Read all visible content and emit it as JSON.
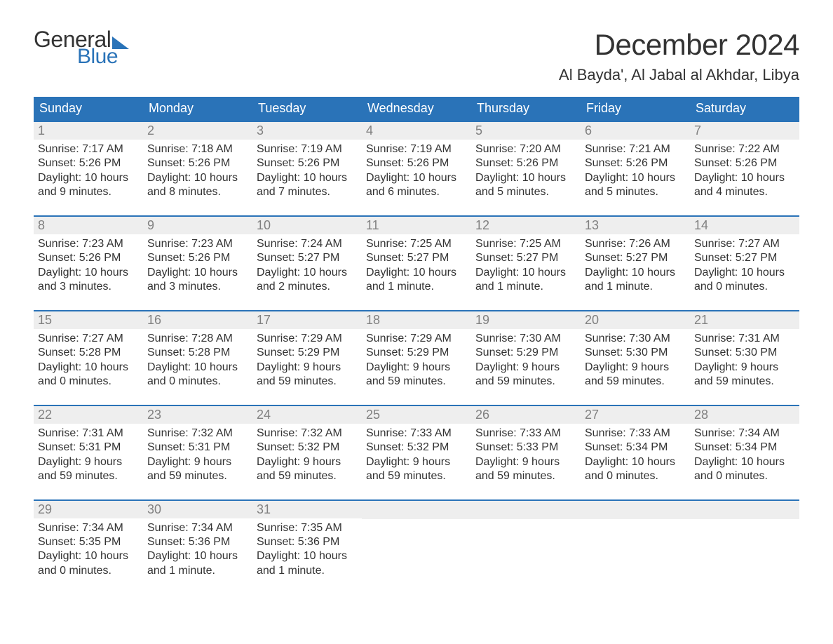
{
  "logo": {
    "text1": "General",
    "text2": "Blue"
  },
  "colors": {
    "brand": "#2a73b8",
    "header_bg": "#2a73b8",
    "header_fg": "#ffffff",
    "daynum_bg": "#eeeeee",
    "daynum_fg": "#808080",
    "body_fg": "#333333",
    "page_bg": "#ffffff"
  },
  "title": "December 2024",
  "location": "Al Bayda', Al Jabal al Akhdar, Libya",
  "day_names": [
    "Sunday",
    "Monday",
    "Tuesday",
    "Wednesday",
    "Thursday",
    "Friday",
    "Saturday"
  ],
  "weeks": [
    [
      {
        "n": "1",
        "sr": "Sunrise: 7:17 AM",
        "ss": "Sunset: 5:26 PM",
        "d1": "Daylight: 10 hours",
        "d2": "and 9 minutes."
      },
      {
        "n": "2",
        "sr": "Sunrise: 7:18 AM",
        "ss": "Sunset: 5:26 PM",
        "d1": "Daylight: 10 hours",
        "d2": "and 8 minutes."
      },
      {
        "n": "3",
        "sr": "Sunrise: 7:19 AM",
        "ss": "Sunset: 5:26 PM",
        "d1": "Daylight: 10 hours",
        "d2": "and 7 minutes."
      },
      {
        "n": "4",
        "sr": "Sunrise: 7:19 AM",
        "ss": "Sunset: 5:26 PM",
        "d1": "Daylight: 10 hours",
        "d2": "and 6 minutes."
      },
      {
        "n": "5",
        "sr": "Sunrise: 7:20 AM",
        "ss": "Sunset: 5:26 PM",
        "d1": "Daylight: 10 hours",
        "d2": "and 5 minutes."
      },
      {
        "n": "6",
        "sr": "Sunrise: 7:21 AM",
        "ss": "Sunset: 5:26 PM",
        "d1": "Daylight: 10 hours",
        "d2": "and 5 minutes."
      },
      {
        "n": "7",
        "sr": "Sunrise: 7:22 AM",
        "ss": "Sunset: 5:26 PM",
        "d1": "Daylight: 10 hours",
        "d2": "and 4 minutes."
      }
    ],
    [
      {
        "n": "8",
        "sr": "Sunrise: 7:23 AM",
        "ss": "Sunset: 5:26 PM",
        "d1": "Daylight: 10 hours",
        "d2": "and 3 minutes."
      },
      {
        "n": "9",
        "sr": "Sunrise: 7:23 AM",
        "ss": "Sunset: 5:26 PM",
        "d1": "Daylight: 10 hours",
        "d2": "and 3 minutes."
      },
      {
        "n": "10",
        "sr": "Sunrise: 7:24 AM",
        "ss": "Sunset: 5:27 PM",
        "d1": "Daylight: 10 hours",
        "d2": "and 2 minutes."
      },
      {
        "n": "11",
        "sr": "Sunrise: 7:25 AM",
        "ss": "Sunset: 5:27 PM",
        "d1": "Daylight: 10 hours",
        "d2": "and 1 minute."
      },
      {
        "n": "12",
        "sr": "Sunrise: 7:25 AM",
        "ss": "Sunset: 5:27 PM",
        "d1": "Daylight: 10 hours",
        "d2": "and 1 minute."
      },
      {
        "n": "13",
        "sr": "Sunrise: 7:26 AM",
        "ss": "Sunset: 5:27 PM",
        "d1": "Daylight: 10 hours",
        "d2": "and 1 minute."
      },
      {
        "n": "14",
        "sr": "Sunrise: 7:27 AM",
        "ss": "Sunset: 5:27 PM",
        "d1": "Daylight: 10 hours",
        "d2": "and 0 minutes."
      }
    ],
    [
      {
        "n": "15",
        "sr": "Sunrise: 7:27 AM",
        "ss": "Sunset: 5:28 PM",
        "d1": "Daylight: 10 hours",
        "d2": "and 0 minutes."
      },
      {
        "n": "16",
        "sr": "Sunrise: 7:28 AM",
        "ss": "Sunset: 5:28 PM",
        "d1": "Daylight: 10 hours",
        "d2": "and 0 minutes."
      },
      {
        "n": "17",
        "sr": "Sunrise: 7:29 AM",
        "ss": "Sunset: 5:29 PM",
        "d1": "Daylight: 9 hours",
        "d2": "and 59 minutes."
      },
      {
        "n": "18",
        "sr": "Sunrise: 7:29 AM",
        "ss": "Sunset: 5:29 PM",
        "d1": "Daylight: 9 hours",
        "d2": "and 59 minutes."
      },
      {
        "n": "19",
        "sr": "Sunrise: 7:30 AM",
        "ss": "Sunset: 5:29 PM",
        "d1": "Daylight: 9 hours",
        "d2": "and 59 minutes."
      },
      {
        "n": "20",
        "sr": "Sunrise: 7:30 AM",
        "ss": "Sunset: 5:30 PM",
        "d1": "Daylight: 9 hours",
        "d2": "and 59 minutes."
      },
      {
        "n": "21",
        "sr": "Sunrise: 7:31 AM",
        "ss": "Sunset: 5:30 PM",
        "d1": "Daylight: 9 hours",
        "d2": "and 59 minutes."
      }
    ],
    [
      {
        "n": "22",
        "sr": "Sunrise: 7:31 AM",
        "ss": "Sunset: 5:31 PM",
        "d1": "Daylight: 9 hours",
        "d2": "and 59 minutes."
      },
      {
        "n": "23",
        "sr": "Sunrise: 7:32 AM",
        "ss": "Sunset: 5:31 PM",
        "d1": "Daylight: 9 hours",
        "d2": "and 59 minutes."
      },
      {
        "n": "24",
        "sr": "Sunrise: 7:32 AM",
        "ss": "Sunset: 5:32 PM",
        "d1": "Daylight: 9 hours",
        "d2": "and 59 minutes."
      },
      {
        "n": "25",
        "sr": "Sunrise: 7:33 AM",
        "ss": "Sunset: 5:32 PM",
        "d1": "Daylight: 9 hours",
        "d2": "and 59 minutes."
      },
      {
        "n": "26",
        "sr": "Sunrise: 7:33 AM",
        "ss": "Sunset: 5:33 PM",
        "d1": "Daylight: 9 hours",
        "d2": "and 59 minutes."
      },
      {
        "n": "27",
        "sr": "Sunrise: 7:33 AM",
        "ss": "Sunset: 5:34 PM",
        "d1": "Daylight: 10 hours",
        "d2": "and 0 minutes."
      },
      {
        "n": "28",
        "sr": "Sunrise: 7:34 AM",
        "ss": "Sunset: 5:34 PM",
        "d1": "Daylight: 10 hours",
        "d2": "and 0 minutes."
      }
    ],
    [
      {
        "n": "29",
        "sr": "Sunrise: 7:34 AM",
        "ss": "Sunset: 5:35 PM",
        "d1": "Daylight: 10 hours",
        "d2": "and 0 minutes."
      },
      {
        "n": "30",
        "sr": "Sunrise: 7:34 AM",
        "ss": "Sunset: 5:36 PM",
        "d1": "Daylight: 10 hours",
        "d2": "and 1 minute."
      },
      {
        "n": "31",
        "sr": "Sunrise: 7:35 AM",
        "ss": "Sunset: 5:36 PM",
        "d1": "Daylight: 10 hours",
        "d2": "and 1 minute."
      },
      null,
      null,
      null,
      null
    ]
  ]
}
